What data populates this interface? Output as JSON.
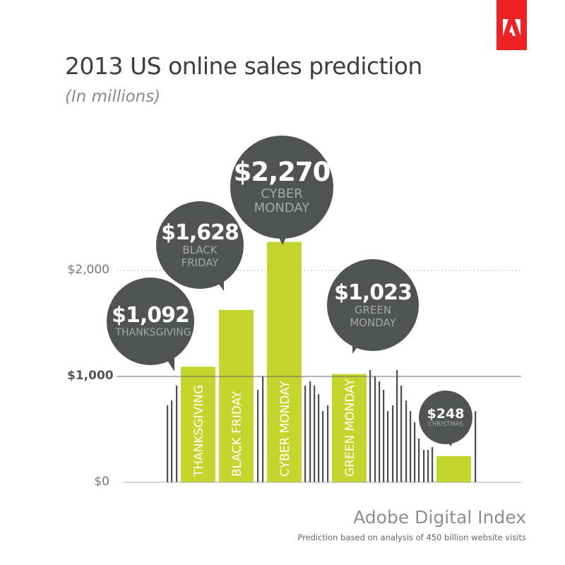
{
  "header": {
    "title": "2013 US online sales prediction",
    "subtitle": "(In millions)",
    "logo_text": "Adobe"
  },
  "footer": {
    "brand": "Adobe Digital Index",
    "note": "Prediction based on analysis of 450 billion website visits"
  },
  "colors": {
    "highlight_bar": "#c4d62e",
    "other_bar": "#4d4d4d",
    "bubble": "#515352",
    "logo": "#ed2224"
  },
  "chart_data": {
    "type": "bar",
    "title": "2013 US online sales prediction",
    "subtitle": "(In millions)",
    "ylim": [
      0,
      2300
    ],
    "y_ticks": [
      {
        "value": 0,
        "label": "$0"
      },
      {
        "value": 1000,
        "label": "$1,000"
      },
      {
        "value": 2000,
        "label": "$2,000"
      }
    ],
    "grid": "lines at $1,000 (solid) and $2,000 (dotted)",
    "highlighted": [
      {
        "name": "THANKSGIVING",
        "label": "THANKSGIVING",
        "value": 1092,
        "value_label": "$1,092"
      },
      {
        "name": "BLACK FRIDAY",
        "label": "BLACK FRIDAY",
        "value": 1628,
        "value_label": "$1,628"
      },
      {
        "name": "CYBER MONDAY",
        "label": "CYBER MONDAY",
        "value": 2270,
        "value_label": "$2,270"
      },
      {
        "name": "GREEN MONDAY",
        "label": "GREEN MONDAY",
        "value": 1023,
        "value_label": "$1,023"
      },
      {
        "name": "CHRISTMAS",
        "label": "CHRISTMAS",
        "value": 248,
        "value_label": "$248"
      }
    ],
    "other_days_values": [
      727,
      773,
      913,
      873,
      1000,
      913,
      953,
      913,
      833,
      673,
      727,
      1060,
      1000,
      953,
      873,
      673,
      727,
      1060,
      913,
      773,
      673,
      567,
      413,
      307,
      307,
      333,
      673
    ]
  }
}
